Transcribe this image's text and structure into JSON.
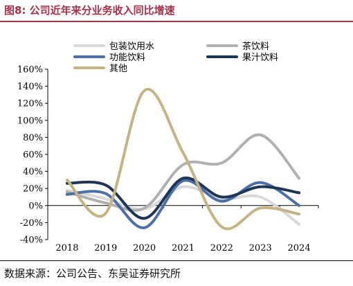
{
  "figure": {
    "title": "图8:  公司近年来分业务收入同比增速",
    "source": "数据来源：公司公告、东吴证券研究所"
  },
  "chart_data": {
    "type": "line",
    "x": [
      "2018",
      "2019",
      "2020",
      "2021",
      "2022",
      "2023",
      "2024"
    ],
    "ylim": [
      -40,
      160
    ],
    "yticks": [
      -40,
      -20,
      0,
      20,
      40,
      60,
      80,
      100,
      120,
      140,
      160
    ],
    "y_format": "percent",
    "grid": false,
    "legend_position": "top",
    "series": [
      {
        "name": "包装饮用水",
        "color": "#d9d9d9",
        "values": [
          18,
          8,
          -4,
          22,
          8,
          10,
          -22
        ]
      },
      {
        "name": "茶饮料",
        "color": "#b0b0b0",
        "values": [
          16,
          3,
          -3,
          48,
          50,
          83,
          32
        ]
      },
      {
        "name": "功能饮料",
        "color": "#4d6fa8",
        "values": [
          13,
          14,
          -26,
          29,
          5,
          27,
          0
        ]
      },
      {
        "name": "果汁饮料",
        "color": "#1d3557",
        "values": [
          26,
          24,
          -15,
          32,
          10,
          22,
          15
        ]
      },
      {
        "name": "其他",
        "color": "#c4b483",
        "values": [
          30,
          -9,
          135,
          62,
          -25,
          -3,
          -10
        ]
      }
    ]
  }
}
